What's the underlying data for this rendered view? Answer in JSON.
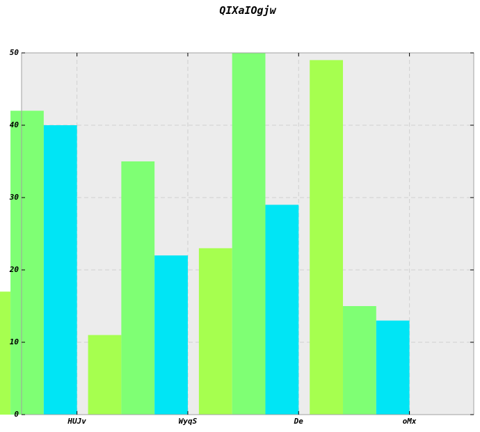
{
  "chart_data": {
    "type": "bar",
    "title": "QIXaIOgjw",
    "xlabel": "",
    "ylabel": "",
    "categories": [
      "HUJv",
      "WyqS",
      "De",
      "oMx"
    ],
    "series": [
      {
        "values": [
          17,
          11,
          23,
          49
        ],
        "color": "#a6ff4f"
      },
      {
        "values": [
          42,
          35,
          50,
          15
        ],
        "color": "#7fff74"
      },
      {
        "values": [
          40,
          22,
          29,
          13
        ],
        "color": "#00e5f5"
      }
    ],
    "ylim": [
      0,
      50
    ],
    "yticks": [
      "0",
      "10",
      "20",
      "30",
      "40",
      "50"
    ],
    "grid": true,
    "legend": "none",
    "plot_background": "#ececec",
    "grid_color": "#d0d0d0"
  }
}
